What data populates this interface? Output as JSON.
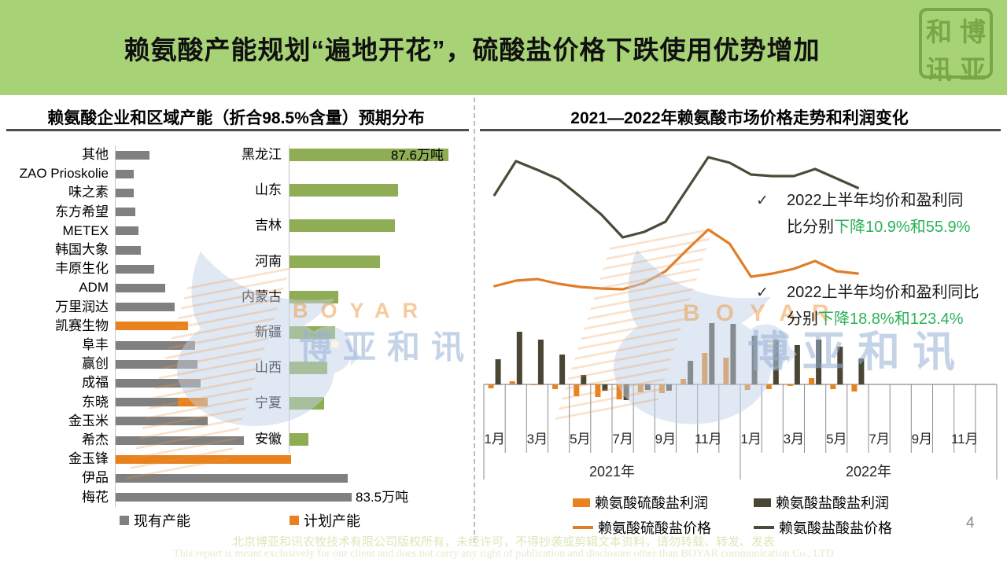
{
  "header": {
    "title": "赖氨酸产能规划“遍地开花”，硫酸盐价格下跌使用优势增加",
    "seal": [
      "和",
      "博",
      "讯",
      "亚"
    ]
  },
  "colors": {
    "header_bg": "#A8D276",
    "seal_green": "#77A845",
    "gray_bar": "#808080",
    "orange": "#E8821E",
    "green_bar": "#8FAD54",
    "dark_olive": "#4A4636",
    "orange_line": "#E07E28",
    "dark_line": "#4E4A38",
    "highlight_green": "#2BB257",
    "footer_text1": "#DCE8BA",
    "footer_text2": "#E2EDCB"
  },
  "left_panel": {
    "title": "赖氨酸企业和区域产能（折合98.5%含量）预期分布"
  },
  "right_panel": {
    "title": "2021—2022年赖氨酸市场价格走势和利润变化",
    "annotations": [
      {
        "bullet": "✓",
        "line1": "2022上半年均价和盈利同",
        "line2_prefix": "比分别",
        "line2_highlight": "下降10.9%和55.9%"
      },
      {
        "bullet": "✓",
        "line1": "2022上半年均价和盈利同比",
        "line2_prefix": "分别",
        "line2_highlight": "下降18.8%和123.4%"
      }
    ]
  },
  "watermark": {
    "brand": "BOYAR",
    "brand_cn": "博亚和讯"
  },
  "footer": {
    "line1": "北京博亚和讯农牧技术有限公司版权所有，未经许可，不得抄袭或剪辑文本资料，请勿转载、转发、发表",
    "line2": "This report is meant exclusively for our client and does not carry any right of publication and disclosure other than BOYAR communication Co., LTD"
  },
  "page": {
    "number": "4"
  },
  "chart_data": [
    {
      "id": "company_capacity",
      "type": "bar",
      "orientation": "horizontal",
      "unit": "万吨",
      "categories": [
        "其他",
        "ZAO Prioskolie",
        "味之素",
        "东方希望",
        "METEX",
        "韩国大象",
        "丰原生化",
        "ADM",
        "万里润达",
        "凯赛生物",
        "阜丰",
        "赢创",
        "成福",
        "东晓",
        "金玉米",
        "希杰",
        "金玉锋",
        "伊品",
        "梅花"
      ],
      "series": [
        {
          "name": "现有产能",
          "values": [
            12,
            6.5,
            6.5,
            7,
            8,
            9,
            13.5,
            17.5,
            21,
            0,
            28,
            29,
            30,
            22,
            32.5,
            45.5,
            0,
            82,
            83.5
          ]
        },
        {
          "name": "计划产能",
          "values": [
            0,
            0,
            0,
            0,
            0,
            0,
            0,
            0,
            0,
            25.5,
            0,
            0,
            0,
            10.5,
            0,
            0,
            62,
            0,
            0
          ]
        }
      ],
      "data_labels": [
        {
          "category": "梅花",
          "text": "83.5万吨"
        }
      ]
    },
    {
      "id": "region_capacity",
      "type": "bar",
      "orientation": "horizontal",
      "unit": "万吨",
      "categories": [
        "黑龙江",
        "山东",
        "吉林",
        "河南",
        "内蒙古",
        "新疆",
        "山西",
        "宁夏",
        "安徽"
      ],
      "values": [
        87.6,
        60,
        58,
        50,
        27,
        25,
        21,
        19,
        10.5
      ],
      "data_labels": [
        {
          "category": "黑龙江",
          "text": "87.6万吨"
        }
      ]
    },
    {
      "id": "price_profit",
      "type": "combo",
      "title": "2021—2022年赖氨酸市场价格走势和利润变化",
      "month_labels": [
        "1月",
        "3月",
        "5月",
        "7月",
        "9月",
        "11月"
      ],
      "years": [
        "2021年",
        "2022年"
      ],
      "value_axis_visible": false,
      "series": [
        {
          "name": "赖氨酸硫酸盐利润",
          "type": "bar",
          "values": [
            -5,
            4,
            -1,
            -6,
            -15,
            -16,
            -19,
            -10,
            -11,
            7,
            40,
            34,
            -7,
            -6,
            -2,
            8,
            -6,
            -9
          ]
        },
        {
          "name": "赖氨酸盐酸盐利润",
          "type": "bar",
          "values": [
            32,
            67,
            57,
            38,
            12,
            -8,
            -20,
            -7,
            -8,
            30,
            78,
            77,
            62,
            57,
            50,
            57,
            48,
            33
          ]
        },
        {
          "name": "赖氨酸硫酸盐价格",
          "type": "line",
          "values": [
            125,
            132,
            134,
            128,
            124,
            122,
            121,
            129,
            144,
            171,
            197,
            179,
            137,
            141,
            147,
            157,
            144,
            141
          ]
        },
        {
          "name": "赖氨酸盐酸盐价格",
          "type": "line",
          "values": [
            241,
            284,
            273,
            261,
            239,
            216,
            187,
            194,
            207,
            248,
            289,
            282,
            267,
            265,
            265,
            274,
            262,
            250
          ]
        }
      ]
    }
  ]
}
